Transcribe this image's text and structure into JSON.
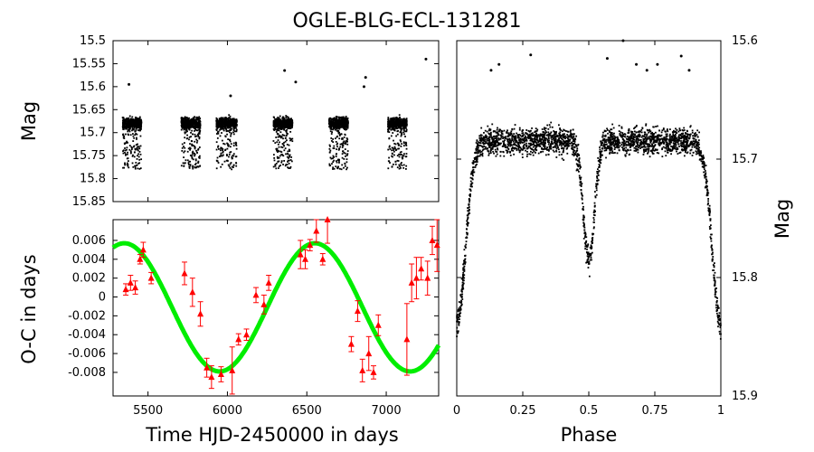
{
  "title": "OGLE-BLG-ECL-131281",
  "colors": {
    "points": "#000000",
    "oc_points": "#ff0000",
    "fit": "#00ee00"
  },
  "chart_data": [
    {
      "id": "lightcurve",
      "type": "scatter",
      "ylabel": "Mag",
      "xlim": [
        5280,
        7330
      ],
      "ylim": [
        15.85,
        15.5
      ],
      "y_inverted": true,
      "yticks": [
        "15.5",
        "15.55",
        "15.6",
        "15.65",
        "15.7",
        "15.75",
        "15.8",
        "15.85"
      ],
      "ytick_values": [
        15.5,
        15.55,
        15.6,
        15.65,
        15.7,
        15.75,
        15.8,
        15.85
      ],
      "seasons": [
        {
          "start": 5340,
          "end": 5460
        },
        {
          "start": 5710,
          "end": 5830
        },
        {
          "start": 5930,
          "end": 6060
        },
        {
          "start": 6290,
          "end": 6410
        },
        {
          "start": 6640,
          "end": 6760
        },
        {
          "start": 7010,
          "end": 7130
        }
      ],
      "baseline_mag": 15.68,
      "eclipse_depth_mag": 0.1,
      "outliers": [
        {
          "x": 5380,
          "y": 15.595
        },
        {
          "x": 6020,
          "y": 15.62
        },
        {
          "x": 6360,
          "y": 15.565
        },
        {
          "x": 6430,
          "y": 15.59
        },
        {
          "x": 6860,
          "y": 15.6
        },
        {
          "x": 6870,
          "y": 15.58
        },
        {
          "x": 7250,
          "y": 15.54
        }
      ]
    },
    {
      "id": "oc",
      "type": "scatter",
      "xlabel": "Time HJD-2450000 in days",
      "ylabel": "O-C in days",
      "xlim": [
        5280,
        7330
      ],
      "ylim": [
        -0.0105,
        0.0082
      ],
      "xticks": [
        "5500",
        "6000",
        "6500",
        "7000"
      ],
      "xtick_values": [
        5500,
        6000,
        6500,
        7000
      ],
      "yticks": [
        "0.006",
        "0.004",
        "0.002",
        "0",
        "-0.002",
        "-0.004",
        "-0.006",
        "-0.008"
      ],
      "ytick_values": [
        0.006,
        0.004,
        0.002,
        0,
        -0.002,
        -0.004,
        -0.006,
        -0.008
      ],
      "fit": {
        "amplitude": 0.0068,
        "period": 1200,
        "phase_zero_x": 5280,
        "offset": -0.0011,
        "phase": 1.2
      },
      "points": [
        {
          "x": 5360,
          "y": 0.0008,
          "err": 0.0006
        },
        {
          "x": 5390,
          "y": 0.0015,
          "err": 0.0008
        },
        {
          "x": 5420,
          "y": 0.001,
          "err": 0.0007
        },
        {
          "x": 5450,
          "y": 0.004,
          "err": 0.0005
        },
        {
          "x": 5470,
          "y": 0.005,
          "err": 0.0008
        },
        {
          "x": 5520,
          "y": 0.002,
          "err": 0.0006
        },
        {
          "x": 5730,
          "y": 0.0025,
          "err": 0.0012
        },
        {
          "x": 5780,
          "y": 0.0005,
          "err": 0.0015
        },
        {
          "x": 5830,
          "y": -0.0018,
          "err": 0.0013
        },
        {
          "x": 5870,
          "y": -0.0075,
          "err": 0.001
        },
        {
          "x": 5900,
          "y": -0.0085,
          "err": 0.0012
        },
        {
          "x": 5960,
          "y": -0.0082,
          "err": 0.0008
        },
        {
          "x": 6030,
          "y": -0.0078,
          "err": 0.0025
        },
        {
          "x": 6070,
          "y": -0.0045,
          "err": 0.0006
        },
        {
          "x": 6120,
          "y": -0.004,
          "err": 0.0006
        },
        {
          "x": 6180,
          "y": 0.0002,
          "err": 0.0008
        },
        {
          "x": 6230,
          "y": -0.0008,
          "err": 0.001
        },
        {
          "x": 6260,
          "y": 0.0015,
          "err": 0.0008
        },
        {
          "x": 6460,
          "y": 0.0045,
          "err": 0.0015
        },
        {
          "x": 6490,
          "y": 0.004,
          "err": 0.001
        },
        {
          "x": 6520,
          "y": 0.0055,
          "err": 0.0006
        },
        {
          "x": 6560,
          "y": 0.007,
          "err": 0.0012
        },
        {
          "x": 6600,
          "y": 0.004,
          "err": 0.0006
        },
        {
          "x": 6630,
          "y": 0.0082,
          "err": 0.0025
        },
        {
          "x": 6780,
          "y": -0.005,
          "err": 0.0008
        },
        {
          "x": 6820,
          "y": -0.0015,
          "err": 0.0011
        },
        {
          "x": 6850,
          "y": -0.0078,
          "err": 0.0012
        },
        {
          "x": 6890,
          "y": -0.006,
          "err": 0.0018
        },
        {
          "x": 6920,
          "y": -0.008,
          "err": 0.0007
        },
        {
          "x": 6950,
          "y": -0.003,
          "err": 0.0011
        },
        {
          "x": 7130,
          "y": -0.0045,
          "err": 0.0038
        },
        {
          "x": 7160,
          "y": 0.0015,
          "err": 0.002
        },
        {
          "x": 7190,
          "y": 0.002,
          "err": 0.0022
        },
        {
          "x": 7220,
          "y": 0.003,
          "err": 0.0012
        },
        {
          "x": 7260,
          "y": 0.002,
          "err": 0.0018
        },
        {
          "x": 7290,
          "y": 0.006,
          "err": 0.0015
        },
        {
          "x": 7320,
          "y": 0.0055,
          "err": 0.0028
        }
      ]
    },
    {
      "id": "phased",
      "type": "scatter",
      "xlabel": "Phase",
      "ylabel": "Mag",
      "xlim": [
        0,
        1
      ],
      "ylim": [
        15.9,
        15.6
      ],
      "y_inverted": true,
      "xticks": [
        "0",
        "0.25",
        "0.5",
        "0.75",
        "1"
      ],
      "xtick_values": [
        0,
        0.25,
        0.5,
        0.75,
        1
      ],
      "yticks": [
        "15.6",
        "15.7",
        "15.8",
        "15.9"
      ],
      "ytick_values": [
        15.6,
        15.7,
        15.8,
        15.9
      ],
      "baseline_mag": 15.685,
      "primary_eclipse": {
        "phase": 0.0,
        "depth_mag": 0.155,
        "width": 0.045
      },
      "secondary_eclipse": {
        "phase": 0.5,
        "depth_mag": 0.1,
        "width": 0.03
      },
      "outliers": [
        {
          "x": 0.13,
          "y": 15.625
        },
        {
          "x": 0.16,
          "y": 15.62
        },
        {
          "x": 0.28,
          "y": 15.612
        },
        {
          "x": 0.63,
          "y": 15.6
        },
        {
          "x": 0.57,
          "y": 15.615
        },
        {
          "x": 0.68,
          "y": 15.62
        },
        {
          "x": 0.72,
          "y": 15.625
        },
        {
          "x": 0.76,
          "y": 15.62
        },
        {
          "x": 0.85,
          "y": 15.613
        },
        {
          "x": 0.88,
          "y": 15.625
        }
      ]
    }
  ]
}
